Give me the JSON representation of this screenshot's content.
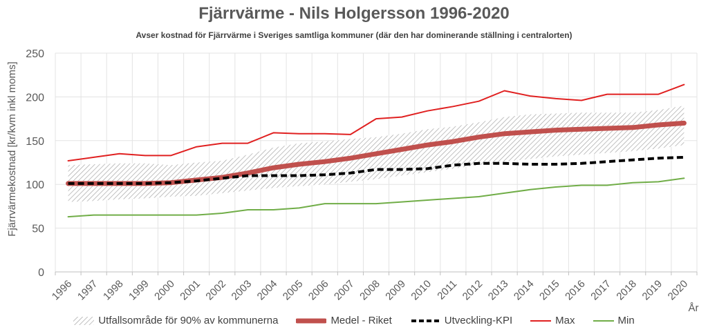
{
  "chart_data": {
    "type": "line",
    "title": "Fjärrvärme - Nils Holgersson 1996-2020",
    "subtitle": "Avser kostnad för Fjärrvärme i Sveriges samtliga kommuner (där den har dominerande ställning i centralorten)",
    "ylabel": "Fjärrvärmekostnad [kr/kvm inkl moms]",
    "xlabel": "År",
    "ylim": [
      0,
      250
    ],
    "yticks": [
      "0",
      "50",
      "100",
      "150",
      "200",
      "250"
    ],
    "categories": [
      "1996",
      "1997",
      "1998",
      "1999",
      "2000",
      "2001",
      "2002",
      "2003",
      "2004",
      "2005",
      "2006",
      "2007",
      "2008",
      "2009",
      "2010",
      "2011",
      "2012",
      "2013",
      "2014",
      "2015",
      "2016",
      "2017",
      "2018",
      "2019",
      "2020"
    ],
    "grid": "vertical and horizontal",
    "legend_position": "bottom",
    "band": {
      "name": "Utfallsområde för 90% av kommunerna",
      "lower": [
        80,
        81,
        83,
        84,
        86,
        87,
        90,
        93,
        96,
        98,
        100,
        103,
        106,
        110,
        114,
        118,
        122,
        126,
        129,
        132,
        134,
        136,
        138,
        141,
        145
      ],
      "upper": [
        122,
        123,
        124,
        124,
        122,
        125,
        127,
        134,
        142,
        147,
        149,
        152,
        154,
        158,
        163,
        166,
        171,
        177,
        180,
        181,
        182,
        182,
        182,
        185,
        190
      ],
      "color": "#a6a6a6"
    },
    "series": [
      {
        "name": "Medel - Riket",
        "color": "#c0504d",
        "values": [
          101,
          101,
          101,
          101,
          102,
          105,
          108,
          113,
          119,
          123,
          126,
          130,
          135,
          140,
          145,
          149,
          154,
          158,
          160,
          162,
          163,
          164,
          165,
          168,
          170
        ]
      },
      {
        "name": "Utveckling-KPI",
        "color": "#000000",
        "values": [
          101,
          101,
          101,
          101,
          102,
          104,
          107,
          110,
          110,
          110,
          111,
          113,
          117,
          117,
          118,
          122,
          124,
          124,
          123,
          123,
          124,
          126,
          128,
          130,
          131
        ]
      },
      {
        "name": "Max",
        "color": "#e02020",
        "values": [
          127,
          131,
          135,
          133,
          133,
          143,
          147,
          147,
          159,
          158,
          158,
          157,
          175,
          177,
          184,
          189,
          195,
          207,
          201,
          198,
          196,
          203,
          203,
          203,
          214
        ]
      },
      {
        "name": "Min",
        "color": "#70ad47",
        "values": [
          63,
          65,
          65,
          65,
          65,
          65,
          67,
          71,
          71,
          73,
          78,
          78,
          78,
          80,
          82,
          84,
          86,
          90,
          94,
          97,
          99,
          99,
          102,
          103,
          107
        ]
      }
    ]
  }
}
